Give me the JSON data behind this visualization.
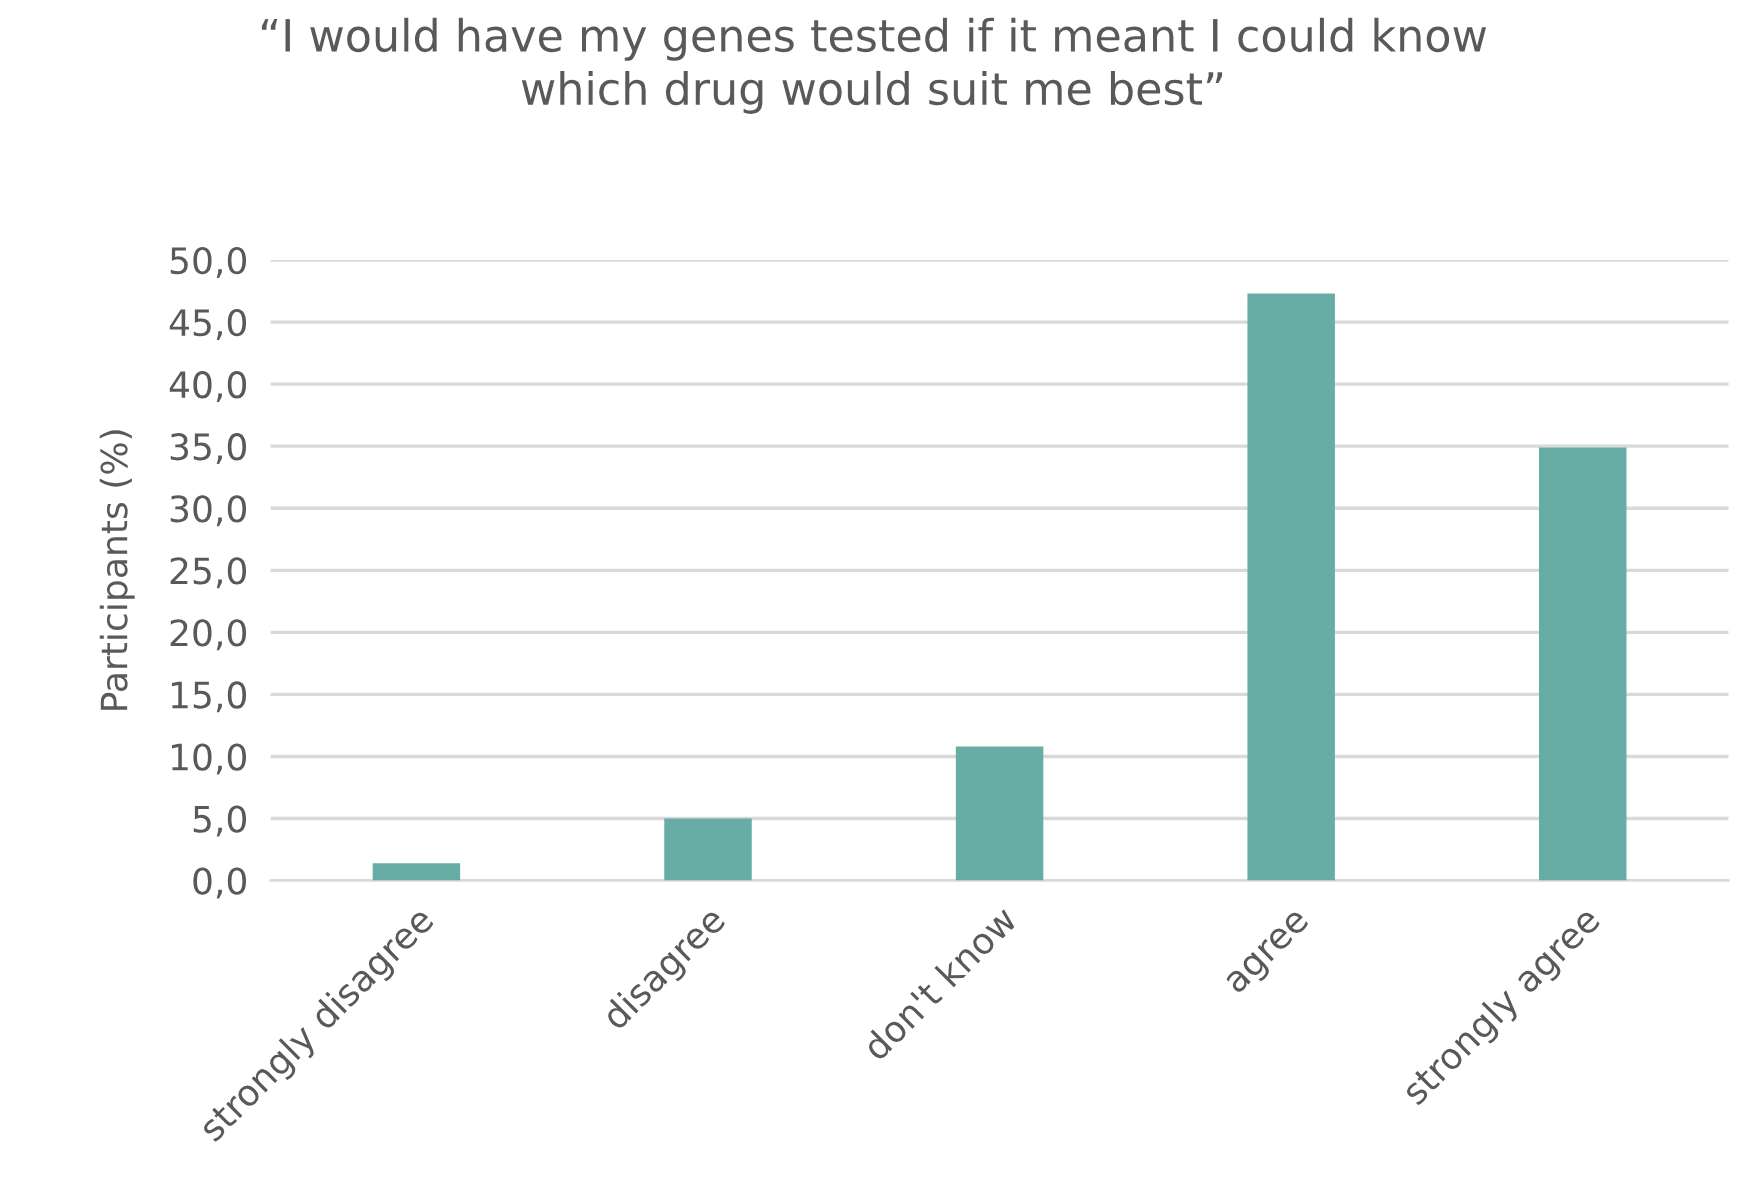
{
  "chart_data": {
    "type": "bar",
    "title": "“I would have my genes tested if it meant I could know\nwhich drug would suit me best”",
    "ylabel": "Participants (%)",
    "categories": [
      "strongly disagree",
      "disagree",
      "don't know",
      "agree",
      "strongly agree"
    ],
    "values": [
      1.4,
      5.0,
      10.8,
      47.3,
      34.9
    ],
    "color": "#67ada5",
    "ylim": [
      0,
      50
    ],
    "yticks": [
      {
        "value": 0,
        "label": "0,0"
      },
      {
        "value": 5,
        "label": "5,0"
      },
      {
        "value": 10,
        "label": "10,0"
      },
      {
        "value": 15,
        "label": "15,0"
      },
      {
        "value": 20,
        "label": "20,0"
      },
      {
        "value": 25,
        "label": "25,0"
      },
      {
        "value": 30,
        "label": "30,0"
      },
      {
        "value": 35,
        "label": "35,0"
      },
      {
        "value": 40,
        "label": "40,0"
      },
      {
        "value": 45,
        "label": "45,0"
      },
      {
        "value": 50,
        "label": "50,0"
      }
    ],
    "grid": "y",
    "legend": false
  }
}
